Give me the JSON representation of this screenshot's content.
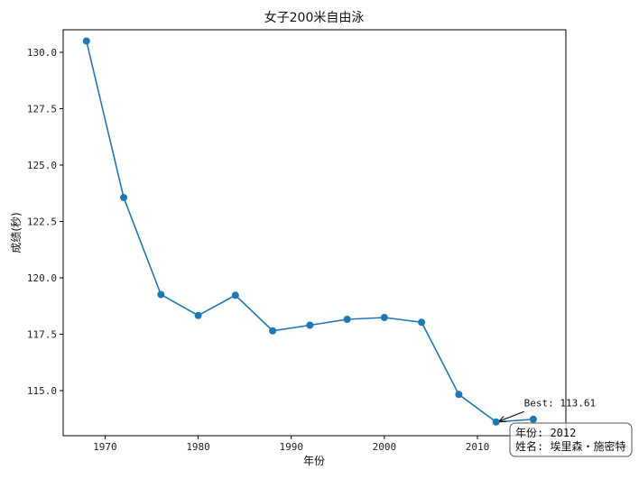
{
  "chart_data": {
    "type": "line",
    "title": "女子200米自由泳",
    "xlabel": "年份",
    "ylabel": "成绩(秒)",
    "xlim": [
      1965.5,
      2019.5
    ],
    "ylim": [
      113.0,
      131.0
    ],
    "xticks": [
      1970,
      1980,
      1990,
      2000,
      2010
    ],
    "xtick_labels": [
      "1970",
      "1980",
      "1990",
      "2000",
      "2010"
    ],
    "yticks": [
      115.0,
      117.5,
      120.0,
      122.5,
      125.0,
      127.5,
      130.0
    ],
    "ytick_labels": [
      "115.0",
      "117.5",
      "120.0",
      "122.5",
      "125.0",
      "127.5",
      "130.0"
    ],
    "grid": false,
    "series": [
      {
        "color": "#1f77b4",
        "marker": "circle",
        "x": [
          1968,
          1972,
          1976,
          1980,
          1984,
          1988,
          1992,
          1996,
          2000,
          2004,
          2008,
          2012,
          2016
        ],
        "y": [
          130.5,
          123.56,
          119.26,
          118.33,
          119.23,
          117.65,
          117.9,
          118.16,
          118.24,
          118.03,
          114.83,
          113.61,
          113.73
        ]
      }
    ],
    "annotations": [
      {
        "text": "Best: 113.61",
        "point": [
          2012,
          113.61
        ],
        "text_pos": [
          2015.2,
          114.15
        ]
      }
    ],
    "info_box": {
      "line1": "年份: 2012",
      "line2": "姓名: 埃里森・施密特"
    }
  }
}
